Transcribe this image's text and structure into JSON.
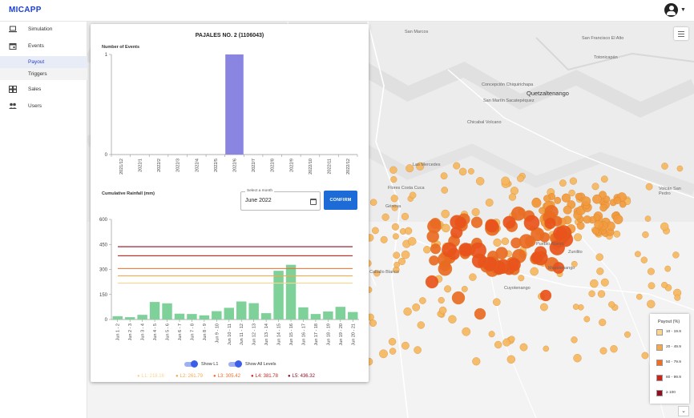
{
  "app": {
    "brand": "MICAPP"
  },
  "sidebar": {
    "items": [
      {
        "label": "Simulation",
        "icon": "laptop-icon"
      },
      {
        "label": "Events",
        "icon": "calendar-icon"
      },
      {
        "label": "Sales",
        "icon": "dashboard-icon"
      },
      {
        "label": "Users",
        "icon": "people-icon"
      }
    ],
    "subitems": [
      {
        "label": "Payout",
        "active": true
      },
      {
        "label": "Triggers",
        "active": false
      }
    ]
  },
  "map": {
    "labels": [
      "San Marcos",
      "San Francisco El Alto",
      "Totonicapán",
      "Quetzaltenango",
      "Concepción Chiquirichapa",
      "San Martín Sacatepéquez",
      "Chicabal Volcano",
      "Las Mercedes",
      "Flores Costa Cuca",
      "Génova",
      "Caballo Blanco",
      "Volcán San Pedro",
      "Pueblo Nuevo",
      "Zunilito",
      "Mazatenango",
      "Cuyotenango"
    ],
    "marker_colors": {
      "low": "#f4b860",
      "mid": "#f19a3e",
      "high": "#ea6a22",
      "max": "#e8531c"
    }
  },
  "legend": {
    "title": "Payout (%)",
    "rows": [
      {
        "label": "10 - 19.9",
        "color": "#fbd590"
      },
      {
        "label": "20 - 49.9",
        "color": "#f7a94a"
      },
      {
        "label": "50 - 79.9",
        "color": "#f06d26"
      },
      {
        "label": "80 - 99.9",
        "color": "#c9251b"
      },
      {
        "label": "≥ 100",
        "color": "#8c0f22"
      }
    ]
  },
  "panel": {
    "title": "PAJALES NO. 2 (1106043)",
    "events_label": "Number of Events",
    "rainfall_label": "Cumulative Rainfall (mm)",
    "month_caption": "Select a month",
    "month_value": "June 2022",
    "confirm_label": "CONFIRM",
    "toggle_l1": "Show L1",
    "toggle_all": "Show All Levels",
    "levels": [
      {
        "label": "L1: 218.16",
        "value": 218.16,
        "color": "#fbd590"
      },
      {
        "label": "L2: 261.79",
        "value": 261.79,
        "color": "#f7a94a"
      },
      {
        "label": "L3: 305.42",
        "value": 305.42,
        "color": "#f06d26"
      },
      {
        "label": "L4: 381.78",
        "value": 381.78,
        "color": "#c9251b"
      },
      {
        "label": "L5: 436.32",
        "value": 436.32,
        "color": "#8c0f22"
      }
    ]
  },
  "chart_data": [
    {
      "type": "bar",
      "title": "Number of Events",
      "categories": [
        "2021/12",
        "2022/1",
        "2022/2",
        "2022/3",
        "2022/4",
        "2022/5",
        "2022/6",
        "2022/7",
        "2022/8",
        "2022/9",
        "2022/10",
        "2022/11",
        "2022/12"
      ],
      "values": [
        0,
        0,
        0,
        0,
        0,
        0,
        1,
        0,
        0,
        0,
        0,
        0,
        0
      ],
      "yticks": [
        0,
        1
      ],
      "ylim": [
        0,
        1
      ],
      "color": "#8a85e0"
    },
    {
      "type": "bar",
      "title": "Cumulative Rainfall (mm)",
      "categories": [
        "Jun 1 - 2",
        "Jun 2 - 3",
        "Jun 3 - 4",
        "Jun 4 - 5",
        "Jun 5 - 6",
        "Jun 6 - 7",
        "Jun 7 - 8",
        "Jun 8 - 9",
        "Jun 9 - 10",
        "Jun 10 - 11",
        "Jun 11 - 12",
        "Jun 12 - 13",
        "Jun 13 - 14",
        "Jun 14 - 15",
        "Jun 15 - 16",
        "Jun 16 - 17",
        "Jun 17 - 18",
        "Jun 18 - 19",
        "Jun 19 - 20",
        "Jun 20 - 21"
      ],
      "values": [
        20,
        14,
        28,
        105,
        97,
        35,
        33,
        25,
        50,
        70,
        108,
        98,
        38,
        292,
        328,
        73,
        33,
        48,
        76,
        45
      ],
      "yticks": [
        0,
        150,
        300,
        450,
        600
      ],
      "ylim": [
        0,
        600
      ],
      "color": "#7fd19a",
      "thresholds": [
        218.16,
        261.79,
        305.42,
        381.78,
        436.32
      ]
    }
  ]
}
